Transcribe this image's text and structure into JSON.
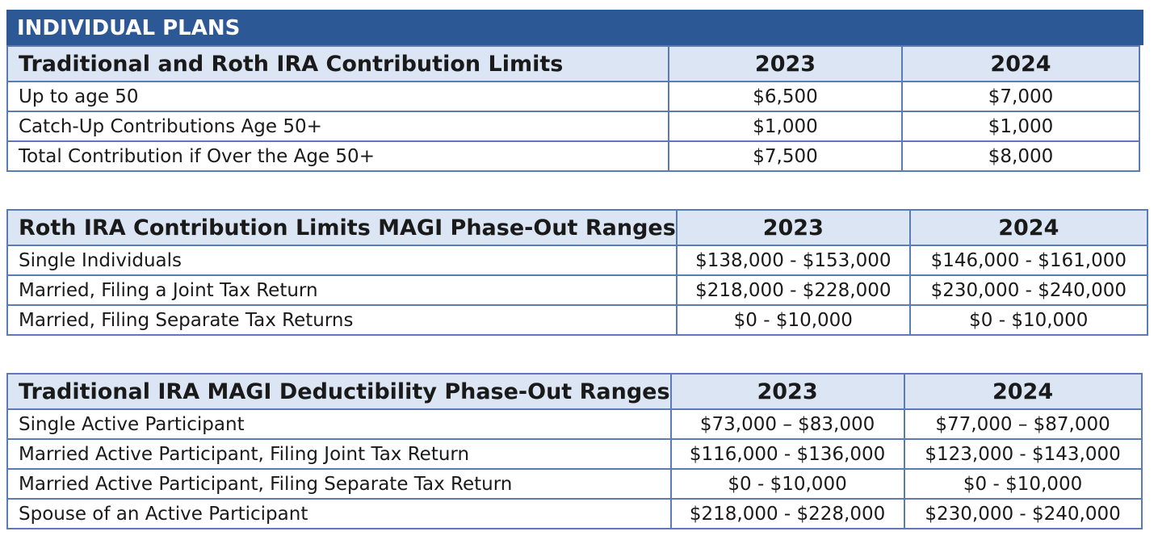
{
  "banner": "INDIVIDUAL PLANS",
  "tables": [
    {
      "header": {
        "title": "Traditional and Roth IRA Contribution Limits",
        "year1": "2023",
        "year2": "2024"
      },
      "rows": [
        {
          "label": "Up to age 50",
          "v2023": "$6,500",
          "v2024": "$7,000"
        },
        {
          "label": "Catch-Up Contributions Age 50+",
          "v2023": "$1,000",
          "v2024": "$1,000"
        },
        {
          "label": "Total Contribution if Over the Age 50+",
          "v2023": "$7,500",
          "v2024": "$8,000"
        }
      ]
    },
    {
      "header": {
        "title": "Roth IRA Contribution Limits MAGI Phase-Out Ranges",
        "year1": "2023",
        "year2": "2024"
      },
      "rows": [
        {
          "label": "Single Individuals",
          "v2023": "$138,000 - $153,000",
          "v2024": "$146,000 - $161,000"
        },
        {
          "label": "Married, Filing a Joint Tax Return",
          "v2023": "$218,000 - $228,000",
          "v2024": "$230,000 - $240,000"
        },
        {
          "label": "Married, Filing Separate Tax Returns",
          "v2023": "$0 - $10,000",
          "v2024": "$0 - $10,000"
        }
      ]
    },
    {
      "header": {
        "title": "Traditional IRA MAGI Deductibility Phase-Out Ranges",
        "year1": "2023",
        "year2": "2024"
      },
      "rows": [
        {
          "label": "Single Active Participant",
          "v2023": "$73,000 – $83,000",
          "v2024": "$77,000 – $87,000"
        },
        {
          "label": "Married Active Participant, Filing Joint Tax Return",
          "v2023": "$116,000 - $136,000",
          "v2024": "$123,000 - $143,000"
        },
        {
          "label": "Married Active Participant, Filing Separate Tax Return",
          "v2023": "$0 - $10,000",
          "v2024": "$0 - $10,000"
        },
        {
          "label": "Spouse of an Active Participant",
          "v2023": "$218,000 - $228,000",
          "v2024": "$230,000 - $240,000"
        }
      ]
    }
  ]
}
